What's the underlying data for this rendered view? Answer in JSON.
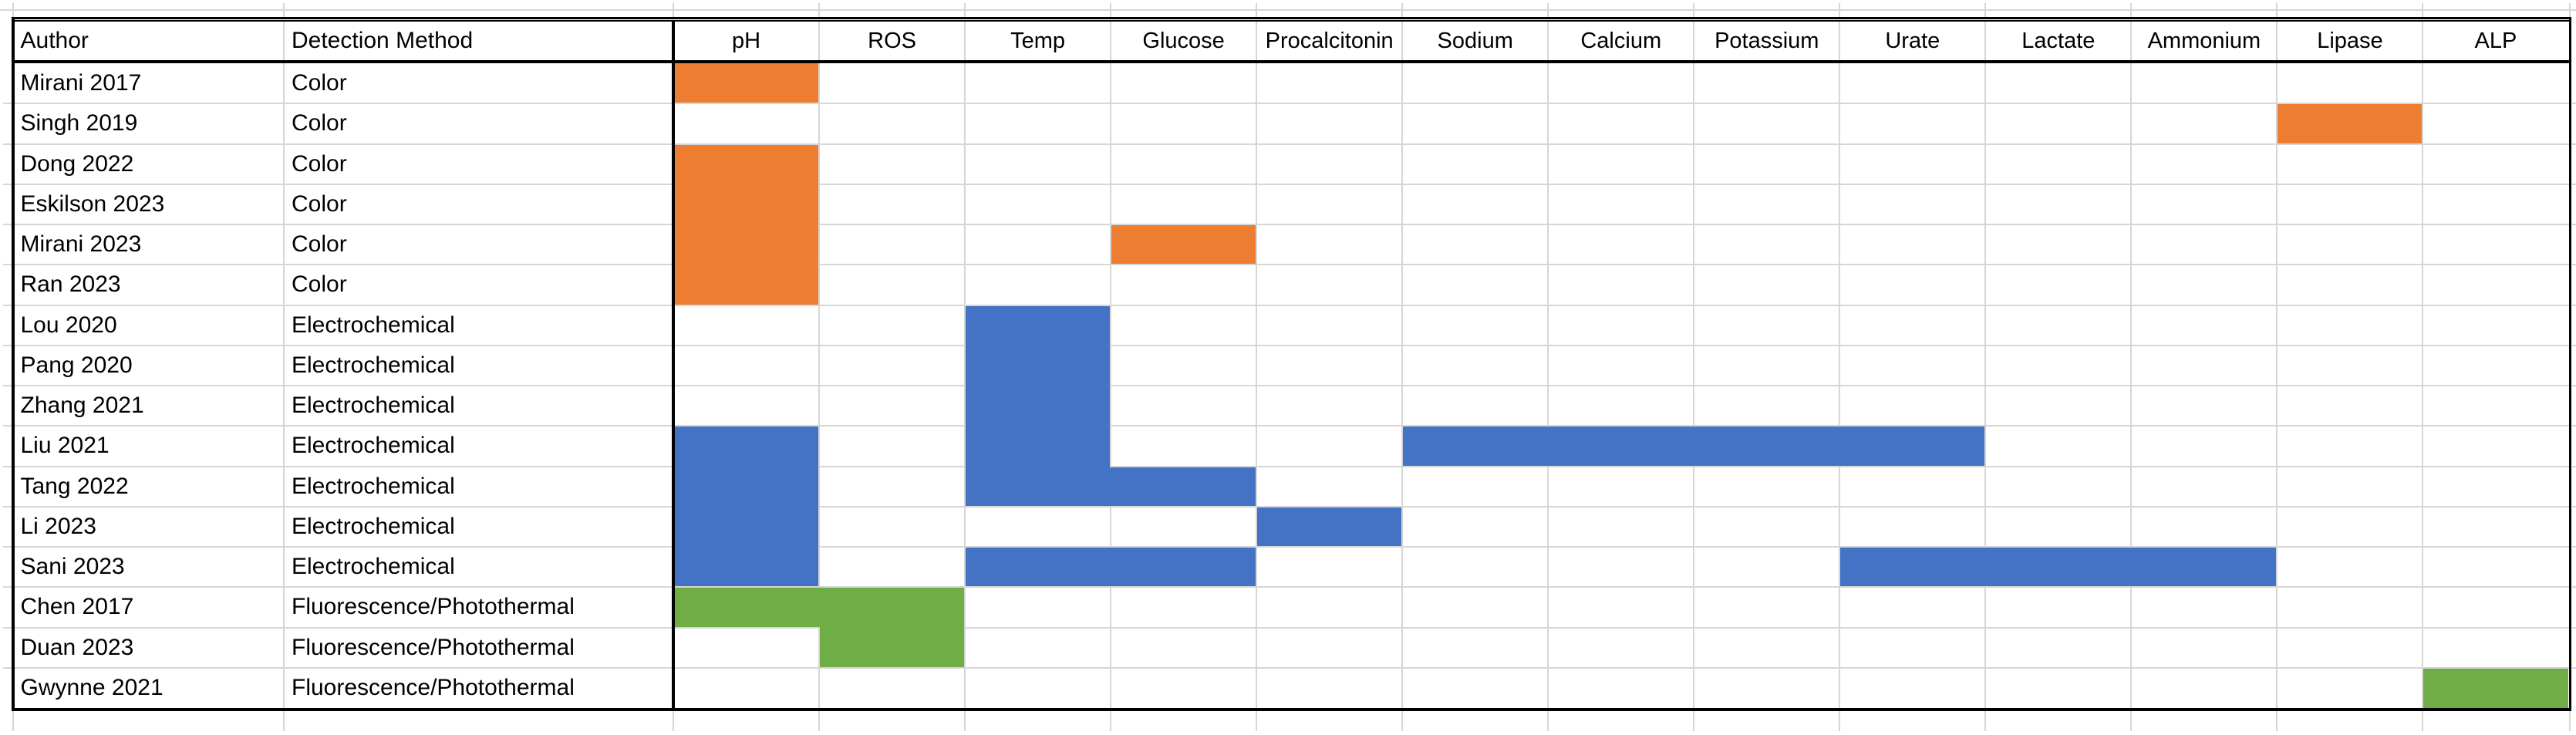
{
  "chart_data": {
    "type": "heatmap",
    "title": "",
    "row_header_columns": [
      "Author",
      "Detection Method"
    ],
    "value_columns": [
      "pH",
      "ROS",
      "Temp",
      "Glucose",
      "Procalcitonin",
      "Sodium",
      "Calcium",
      "Potassium",
      "Urate",
      "Lactate",
      "Ammonium",
      "Lipase",
      "ALP"
    ],
    "method_colors": {
      "Color": "#ED7D31",
      "Electrochemical": "#4472C4",
      "Fluorescence/Photothermal": "#70AD47"
    },
    "rows": [
      {
        "author": "Mirani 2017",
        "method": "Color",
        "detected": [
          "pH"
        ]
      },
      {
        "author": "Singh 2019",
        "method": "Color",
        "detected": [
          "Lipase"
        ]
      },
      {
        "author": "Dong 2022",
        "method": "Color",
        "detected": [
          "pH"
        ]
      },
      {
        "author": "Eskilson 2023",
        "method": "Color",
        "detected": [
          "pH"
        ]
      },
      {
        "author": "Mirani 2023",
        "method": "Color",
        "detected": [
          "pH",
          "Glucose"
        ]
      },
      {
        "author": "Ran 2023",
        "method": "Color",
        "detected": [
          "pH"
        ]
      },
      {
        "author": "Lou 2020",
        "method": "Electrochemical",
        "detected": [
          "Temp"
        ]
      },
      {
        "author": "Pang 2020",
        "method": "Electrochemical",
        "detected": [
          "Temp"
        ]
      },
      {
        "author": "Zhang 2021",
        "method": "Electrochemical",
        "detected": [
          "Temp"
        ]
      },
      {
        "author": "Liu 2021",
        "method": "Electrochemical",
        "detected": [
          "pH",
          "Temp",
          "Sodium",
          "Calcium",
          "Potassium",
          "Urate"
        ]
      },
      {
        "author": "Tang 2022",
        "method": "Electrochemical",
        "detected": [
          "pH",
          "Temp",
          "Glucose"
        ]
      },
      {
        "author": "Li 2023",
        "method": "Electrochemical",
        "detected": [
          "pH",
          "Procalcitonin"
        ]
      },
      {
        "author": "Sani 2023",
        "method": "Electrochemical",
        "detected": [
          "pH",
          "Temp",
          "Glucose",
          "Urate",
          "Lactate",
          "Ammonium"
        ]
      },
      {
        "author": "Chen 2017",
        "method": "Fluorescence/Photothermal",
        "detected": [
          "pH",
          "ROS"
        ]
      },
      {
        "author": "Duan 2023",
        "method": "Fluorescence/Photothermal",
        "detected": [
          "ROS"
        ]
      },
      {
        "author": "Gwynne 2021",
        "method": "Fluorescence/Photothermal",
        "detected": [
          "ALP"
        ]
      }
    ],
    "grid": true,
    "gridline_color": "#D6D6D6",
    "border_color": "#000000",
    "background": "#FFFFFF"
  }
}
